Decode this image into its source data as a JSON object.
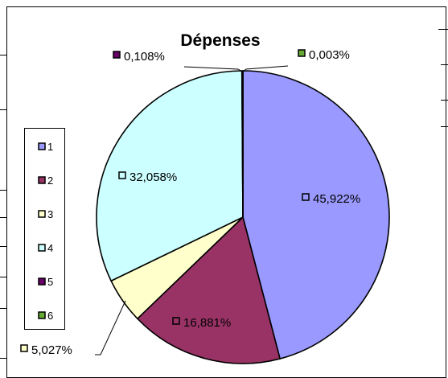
{
  "chart_data": {
    "type": "pie",
    "title": "Dépenses",
    "categories": [
      "1",
      "2",
      "3",
      "4",
      "5",
      "6"
    ],
    "values": [
      45.922,
      16.881,
      5.027,
      32.058,
      0.108,
      0.003
    ],
    "labels": [
      "45,922%",
      "16,881%",
      "5,027%",
      "32,058%",
      "0,108%",
      "0,003%"
    ],
    "colors": [
      "#9999ff",
      "#993366",
      "#ffffcc",
      "#ccffff",
      "#660066",
      "#66aa33"
    ],
    "legend": {
      "position": "left",
      "entries": [
        "1",
        "2",
        "3",
        "4",
        "5",
        "6"
      ]
    },
    "start_angle_deg": 0,
    "direction": "clockwise"
  }
}
